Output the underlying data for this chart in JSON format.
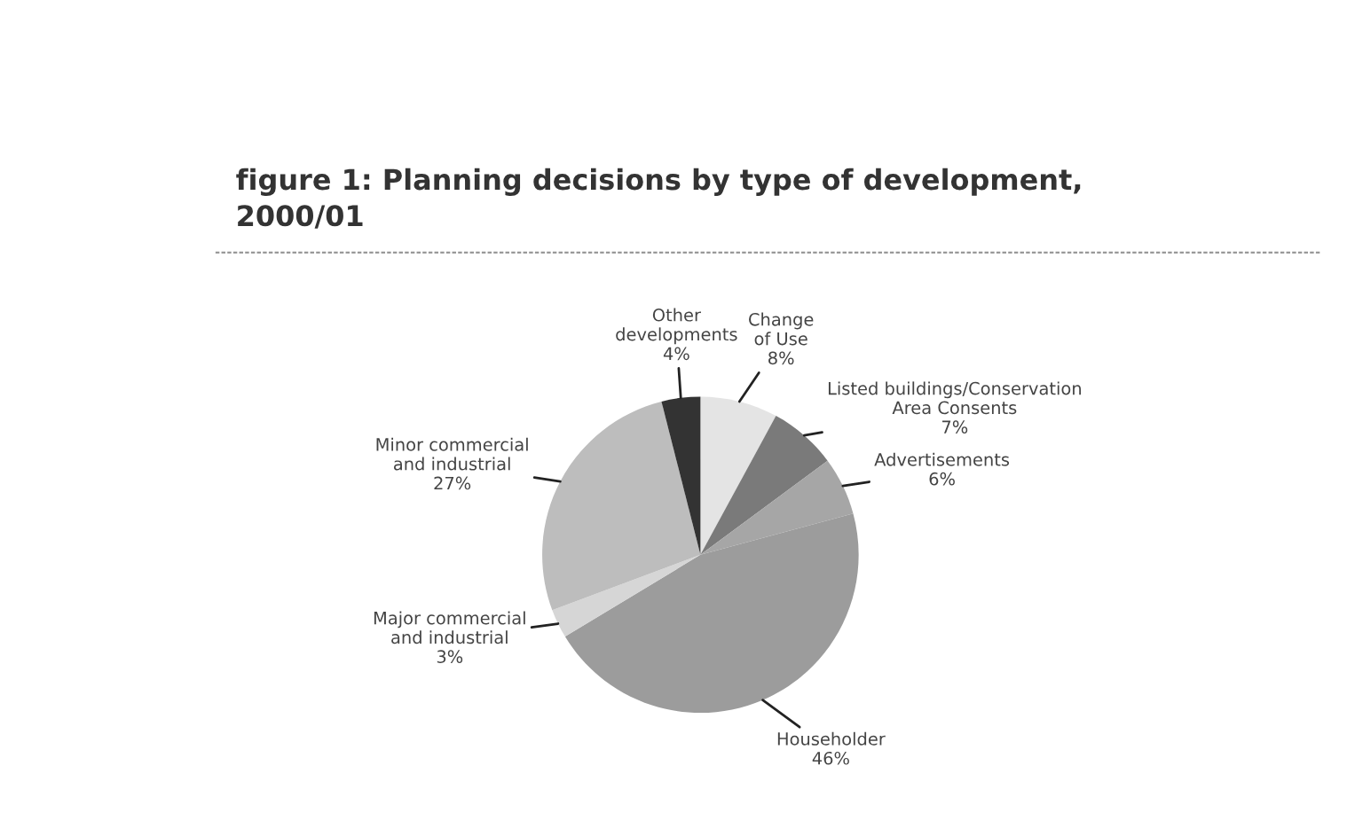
{
  "chart_data": {
    "type": "pie",
    "title": "figure 1: Planning decisions by type of development,\n2000/01",
    "categories": [
      "Change\nof Use",
      "Listed buildings/Conservation\nArea Consents",
      "Advertisements",
      "Householder",
      "Major commercial\nand industrial",
      "Minor commercial\nand industrial",
      "Other\ndevelopments"
    ],
    "values": [
      8,
      7,
      6,
      46,
      3,
      27,
      4
    ],
    "value_labels": [
      "8%",
      "7%",
      "6%",
      "46%",
      "3%",
      "27%",
      "4%"
    ],
    "colors": [
      "#e4e4e4",
      "#7a7a7a",
      "#a6a6a6",
      "#9c9c9c",
      "#d6d6d6",
      "#bdbdbd",
      "#333333"
    ]
  }
}
